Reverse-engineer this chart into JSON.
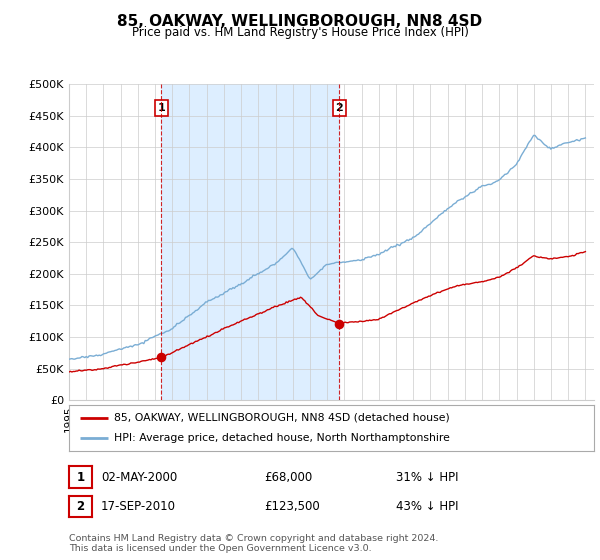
{
  "title": "85, OAKWAY, WELLINGBOROUGH, NN8 4SD",
  "subtitle": "Price paid vs. HM Land Registry's House Price Index (HPI)",
  "ylim": [
    0,
    500000
  ],
  "yticks": [
    0,
    50000,
    100000,
    150000,
    200000,
    250000,
    300000,
    350000,
    400000,
    450000,
    500000
  ],
  "ytick_labels": [
    "£0",
    "£50K",
    "£100K",
    "£150K",
    "£200K",
    "£250K",
    "£300K",
    "£350K",
    "£400K",
    "£450K",
    "£500K"
  ],
  "hpi_color": "#7aadd4",
  "price_color": "#cc0000",
  "shade_color": "#ddeeff",
  "sale1_t": 2000.37,
  "sale1_price": 68000,
  "sale1_date": "02-MAY-2000",
  "sale1_pct": "31% ↓ HPI",
  "sale2_t": 2010.71,
  "sale2_price": 123500,
  "sale2_date": "17-SEP-2010",
  "sale2_pct": "43% ↓ HPI",
  "legend_label1": "85, OAKWAY, WELLINGBOROUGH, NN8 4SD (detached house)",
  "legend_label2": "HPI: Average price, detached house, North Northamptonshire",
  "footnote": "Contains HM Land Registry data © Crown copyright and database right 2024.\nThis data is licensed under the Open Government Licence v3.0.",
  "background_color": "#ffffff",
  "grid_color": "#cccccc",
  "xlim_left": 1995.0,
  "xlim_right": 2025.5
}
